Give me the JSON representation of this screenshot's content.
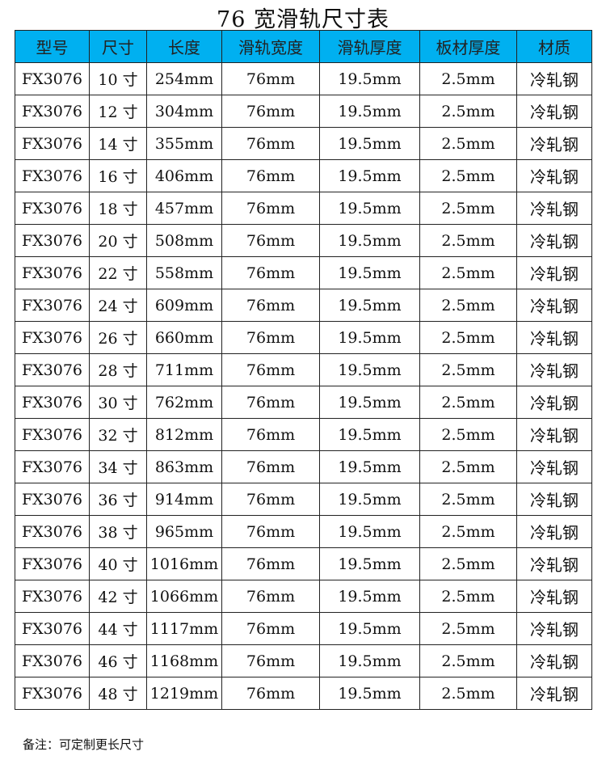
{
  "title": "76 宽滑轨尺寸表",
  "colors": {
    "header_bg": "#00b0f0"
  },
  "headers": [
    "型号",
    "尺寸",
    "长度",
    "滑轨宽度",
    "滑轨厚度",
    "板材厚度",
    "材质"
  ],
  "rows": [
    [
      "FX3076",
      "10 寸",
      "254mm",
      "76mm",
      "19.5mm",
      "2.5mm",
      "冷轧钢"
    ],
    [
      "FX3076",
      "12 寸",
      "304mm",
      "76mm",
      "19.5mm",
      "2.5mm",
      "冷轧钢"
    ],
    [
      "FX3076",
      "14 寸",
      "355mm",
      "76mm",
      "19.5mm",
      "2.5mm",
      "冷轧钢"
    ],
    [
      "FX3076",
      "16 寸",
      "406mm",
      "76mm",
      "19.5mm",
      "2.5mm",
      "冷轧钢"
    ],
    [
      "FX3076",
      "18 寸",
      "457mm",
      "76mm",
      "19.5mm",
      "2.5mm",
      "冷轧钢"
    ],
    [
      "FX3076",
      "20 寸",
      "508mm",
      "76mm",
      "19.5mm",
      "2.5mm",
      "冷轧钢"
    ],
    [
      "FX3076",
      "22 寸",
      "558mm",
      "76mm",
      "19.5mm",
      "2.5mm",
      "冷轧钢"
    ],
    [
      "FX3076",
      "24 寸",
      "609mm",
      "76mm",
      "19.5mm",
      "2.5mm",
      "冷轧钢"
    ],
    [
      "FX3076",
      "26 寸",
      "660mm",
      "76mm",
      "19.5mm",
      "2.5mm",
      "冷轧钢"
    ],
    [
      "FX3076",
      "28 寸",
      "711mm",
      "76mm",
      "19.5mm",
      "2.5mm",
      "冷轧钢"
    ],
    [
      "FX3076",
      "30 寸",
      "762mm",
      "76mm",
      "19.5mm",
      "2.5mm",
      "冷轧钢"
    ],
    [
      "FX3076",
      "32 寸",
      "812mm",
      "76mm",
      "19.5mm",
      "2.5mm",
      "冷轧钢"
    ],
    [
      "FX3076",
      "34 寸",
      "863mm",
      "76mm",
      "19.5mm",
      "2.5mm",
      "冷轧钢"
    ],
    [
      "FX3076",
      "36 寸",
      "914mm",
      "76mm",
      "19.5mm",
      "2.5mm",
      "冷轧钢"
    ],
    [
      "FX3076",
      "38 寸",
      "965mm",
      "76mm",
      "19.5mm",
      "2.5mm",
      "冷轧钢"
    ],
    [
      "FX3076",
      "40 寸",
      "1016mm",
      "76mm",
      "19.5mm",
      "2.5mm",
      "冷轧钢"
    ],
    [
      "FX3076",
      "42 寸",
      "1066mm",
      "76mm",
      "19.5mm",
      "2.5mm",
      "冷轧钢"
    ],
    [
      "FX3076",
      "44 寸",
      "1117mm",
      "76mm",
      "19.5mm",
      "2.5mm",
      "冷轧钢"
    ],
    [
      "FX3076",
      "46 寸",
      "1168mm",
      "76mm",
      "19.5mm",
      "2.5mm",
      "冷轧钢"
    ],
    [
      "FX3076",
      "48 寸",
      "1219mm",
      "76mm",
      "19.5mm",
      "2.5mm",
      "冷轧钢"
    ]
  ],
  "note": "备注：可定制更长尺寸"
}
